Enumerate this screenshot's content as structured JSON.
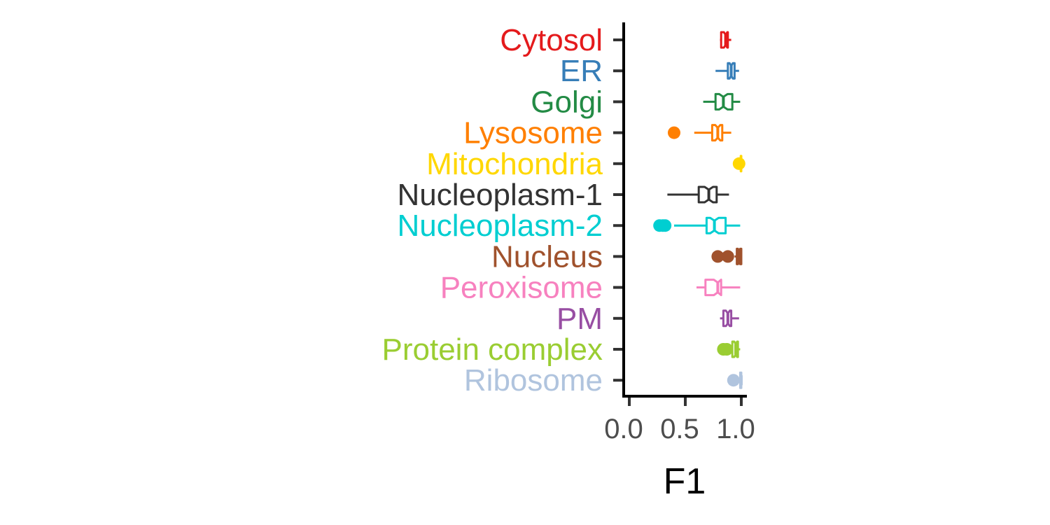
{
  "chart_data": {
    "type": "boxplot",
    "orientation": "horizontal",
    "notched": true,
    "xlabel": "F1",
    "ylabel": "",
    "xlim": [
      0,
      1
    ],
    "xticks": [
      {
        "value": 0.0,
        "label": "0.0"
      },
      {
        "value": 0.5,
        "label": "0.5"
      },
      {
        "value": 1.0,
        "label": "1.0"
      }
    ],
    "grid": false,
    "legend": "none",
    "categories": [
      {
        "name": "Cytosol",
        "color": "#e41a1c",
        "min": 0.81,
        "q1": 0.82,
        "median": 0.86,
        "q3": 0.88,
        "max": 0.91,
        "outliers": []
      },
      {
        "name": "ER",
        "color": "#377eb8",
        "min": 0.77,
        "q1": 0.88,
        "median": 0.91,
        "q3": 0.94,
        "max": 0.98,
        "outliers": []
      },
      {
        "name": "Golgi",
        "color": "#238b45",
        "min": 0.66,
        "q1": 0.77,
        "median": 0.84,
        "q3": 0.92,
        "max": 0.99,
        "outliers": []
      },
      {
        "name": "Lysosome",
        "color": "#ff7f00",
        "min": 0.58,
        "q1": 0.74,
        "median": 0.79,
        "q3": 0.83,
        "max": 0.91,
        "outliers": [
          0.4
        ]
      },
      {
        "name": "Mitochondria",
        "color": "#ffd700",
        "min": 0.97,
        "q1": 0.995,
        "median": 1.0,
        "q3": 1.0,
        "max": 1.0,
        "outliers": [
          0.98
        ]
      },
      {
        "name": "Nucleoplasm-1",
        "color": "#333333",
        "min": 0.34,
        "q1": 0.62,
        "median": 0.71,
        "q3": 0.78,
        "max": 0.89,
        "outliers": []
      },
      {
        "name": "Nucleoplasm-2",
        "color": "#00ced1",
        "min": 0.4,
        "q1": 0.69,
        "median": 0.76,
        "q3": 0.86,
        "max": 0.99,
        "outliers": [
          0.27,
          0.3,
          0.32
        ]
      },
      {
        "name": "Nucleus",
        "color": "#a0522d",
        "min": 0.94,
        "q1": 0.96,
        "median": 0.98,
        "q3": 1.0,
        "max": 1.0,
        "outliers": [
          0.79,
          0.88
        ]
      },
      {
        "name": "Peroxisome",
        "color": "#f781bf",
        "min": 0.6,
        "q1": 0.68,
        "median": 0.79,
        "q3": 0.82,
        "max": 0.99,
        "outliers": []
      },
      {
        "name": "PM",
        "color": "#984ea3",
        "min": 0.81,
        "q1": 0.84,
        "median": 0.88,
        "q3": 0.91,
        "max": 0.98,
        "outliers": []
      },
      {
        "name": "Protein complex",
        "color": "#9acd32",
        "min": 0.9,
        "q1": 0.92,
        "median": 0.95,
        "q3": 0.97,
        "max": 0.99,
        "outliers": [
          0.84,
          0.87
        ]
      },
      {
        "name": "Ribosome",
        "color": "#b0c4de",
        "min": 0.97,
        "q1": 0.99,
        "median": 1.0,
        "q3": 1.0,
        "max": 1.0,
        "outliers": [
          0.93
        ]
      }
    ]
  }
}
